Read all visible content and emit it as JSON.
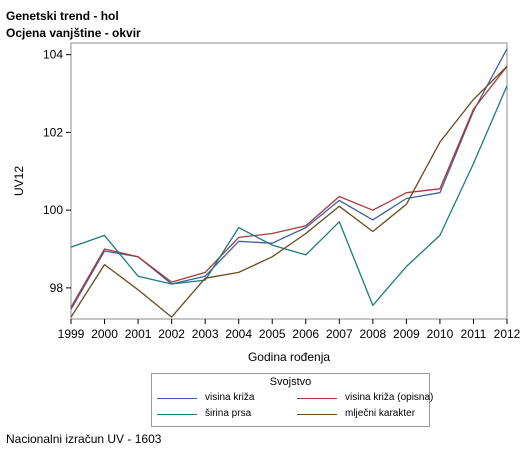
{
  "header": {
    "title": "Genetski trend - hol",
    "subtitle": "Ocjena vanjštine - okvir"
  },
  "footnote": "Nacionalni izračun UV - 1603",
  "legend": {
    "title": "Svojstvo"
  },
  "chart_data": {
    "type": "line",
    "xlabel": "Godina rođenja",
    "ylabel": "UV12",
    "x": [
      1999,
      2000,
      2001,
      2002,
      2003,
      2004,
      2005,
      2006,
      2007,
      2008,
      2009,
      2010,
      2011,
      2012
    ],
    "xlim": [
      1999,
      2012
    ],
    "ylim": [
      97.2,
      104.3
    ],
    "yticks": [
      98,
      100,
      102,
      104
    ],
    "grid": false,
    "legend_position": "bottom",
    "series": [
      {
        "name": "visina križa",
        "color": "#3f5fa3",
        "values": [
          97.45,
          98.95,
          98.8,
          98.1,
          98.3,
          99.2,
          99.15,
          99.55,
          100.25,
          99.75,
          100.3,
          100.45,
          102.55,
          104.15
        ]
      },
      {
        "name": "visina križa (opisna)",
        "color": "#a83a3a",
        "values": [
          97.5,
          99.0,
          98.8,
          98.15,
          98.4,
          99.3,
          99.4,
          99.6,
          100.35,
          100.0,
          100.45,
          100.55,
          102.6,
          103.7
        ]
      },
      {
        "name": "širina prsa",
        "color": "#1e7b7b",
        "values": [
          99.05,
          99.35,
          98.3,
          98.1,
          98.2,
          99.55,
          99.1,
          98.85,
          99.7,
          97.55,
          98.55,
          99.35,
          101.2,
          103.2
        ]
      },
      {
        "name": "mlječni karakter",
        "color": "#6b4a1f",
        "values": [
          97.25,
          98.6,
          97.95,
          97.25,
          98.25,
          98.4,
          98.8,
          99.4,
          100.1,
          99.45,
          100.15,
          101.75,
          102.85,
          103.7
        ]
      }
    ]
  }
}
